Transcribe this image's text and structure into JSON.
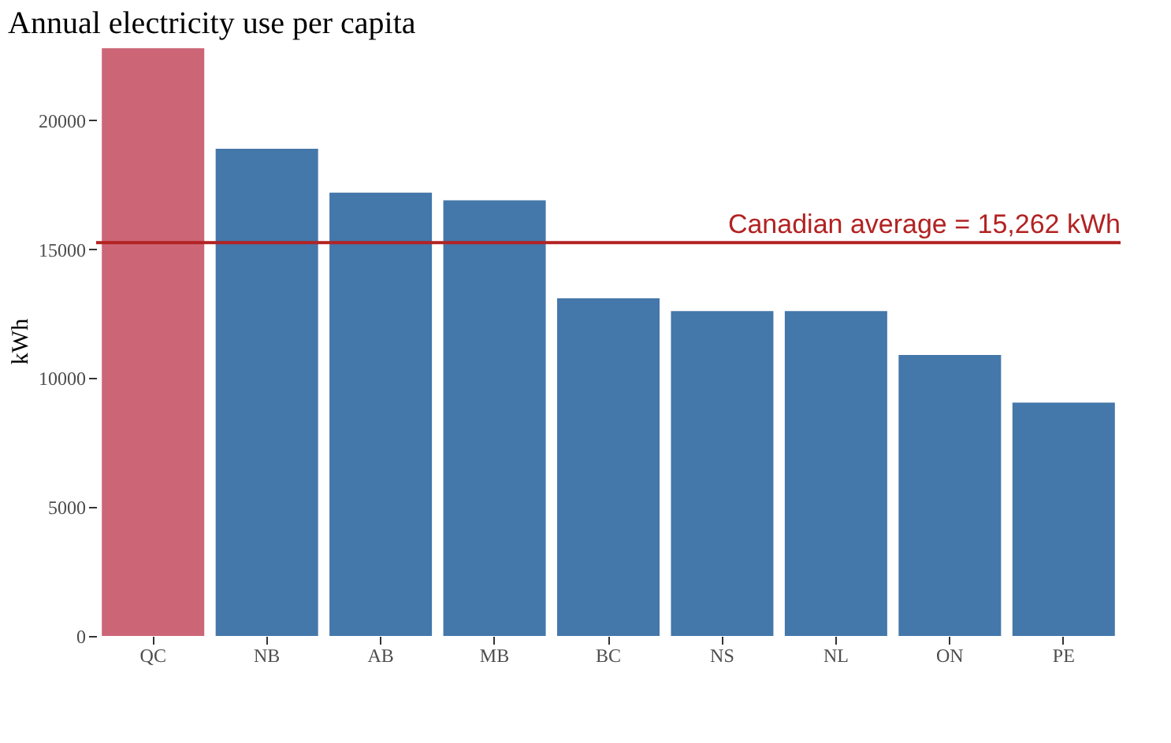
{
  "chart_data": {
    "type": "bar",
    "title": "Annual electricity use per capita",
    "ylabel": "kWh",
    "categories": [
      "QC",
      "NB",
      "AB",
      "MB",
      "BC",
      "NS",
      "NL",
      "ON",
      "PE"
    ],
    "values": [
      22800,
      18900,
      17200,
      16900,
      13100,
      12600,
      12600,
      10900,
      9050
    ],
    "colors": [
      "#cc6677",
      "#4477aa",
      "#4477aa",
      "#4477aa",
      "#4477aa",
      "#4477aa",
      "#4477aa",
      "#4477aa",
      "#4477aa"
    ],
    "ylim": [
      0,
      22900
    ],
    "yticks": [
      0,
      5000,
      10000,
      15000,
      20000
    ],
    "grid": false,
    "ref_lines": [
      {
        "axis": "y",
        "value": 15262,
        "label": "Canadian average = 15,262 kWh",
        "color": "#b22222"
      }
    ]
  }
}
